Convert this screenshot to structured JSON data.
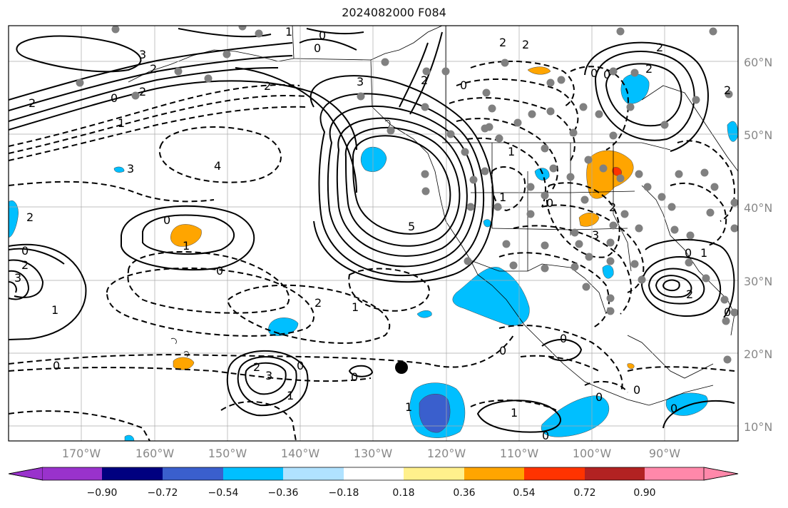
{
  "title": "2024082000 F084",
  "map": {
    "lat_labels": [
      "60°N",
      "50°N",
      "40°N",
      "30°N",
      "20°N",
      "10°N"
    ],
    "lon_labels": [
      "170°W",
      "160°W",
      "150°W",
      "140°W",
      "130°W",
      "120°W",
      "110°W",
      "100°W",
      "90°W"
    ],
    "contour_labels": {
      "solid": [
        "1",
        "2",
        "3",
        "5",
        "1",
        "2",
        "3",
        "1",
        "2",
        "1",
        "2",
        "3",
        "1",
        "2",
        "1"
      ],
      "dashed": [
        "0",
        "1",
        "2",
        "3",
        "4",
        "0",
        "1",
        "2",
        "0",
        "0",
        "0",
        "2",
        "3"
      ]
    }
  },
  "colorbar": {
    "labels": [
      "−0.90",
      "−0.72",
      "−0.54",
      "−0.36",
      "−0.18",
      "0.18",
      "0.36",
      "0.54",
      "0.72",
      "0.90"
    ],
    "colors": [
      "#9932cc",
      "#000080",
      "#3a5fcd",
      "#00bfff",
      "#b0e2ff",
      "#ffffff",
      "#fff08c",
      "#ffa500",
      "#ff3300",
      "#b22222",
      "#ff88aa",
      "#ff88aa"
    ]
  }
}
